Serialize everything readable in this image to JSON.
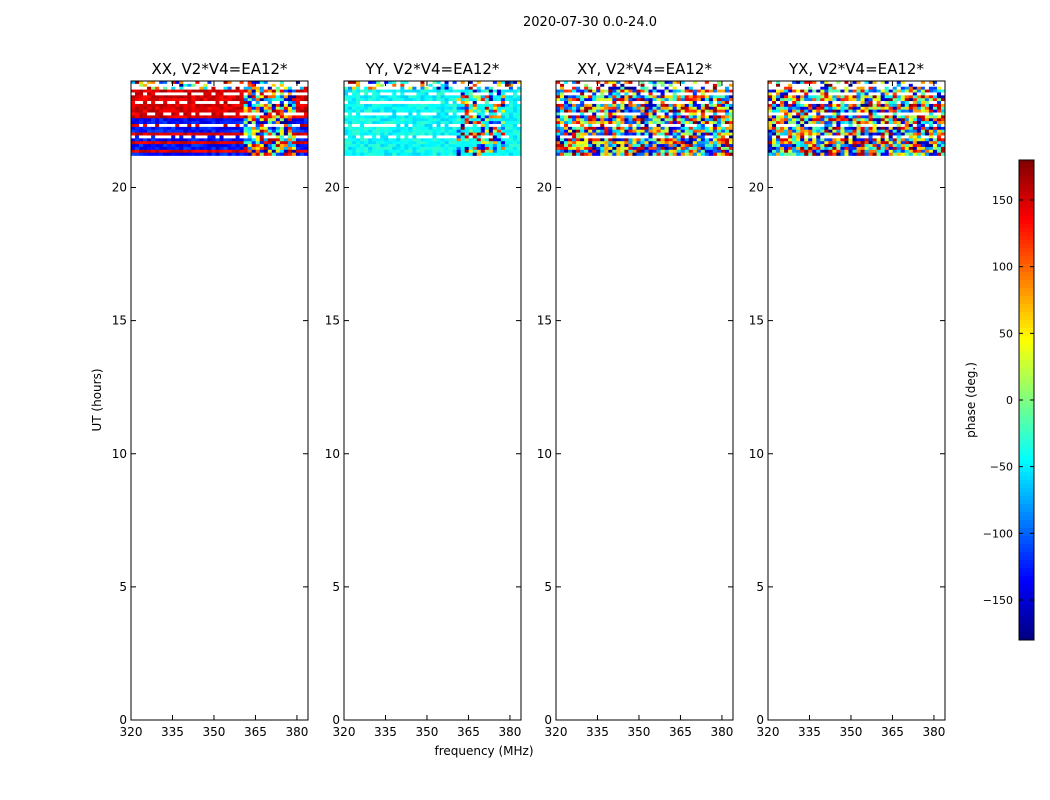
{
  "figure_title": "2020-07-30 0.0-24.0",
  "chart_data": {
    "type": "heatmap",
    "suptitle": "2020-07-30 0.0-24.0",
    "shared_xlabel": "frequency (MHz)",
    "shared_ylabel": "UT (hours)",
    "xlim": [
      320,
      384
    ],
    "ylim": [
      0,
      24
    ],
    "x_ticks": [
      320,
      335,
      350,
      365,
      380
    ],
    "y_ticks": [
      0,
      5,
      10,
      15,
      20
    ],
    "data_time_range_hours": [
      21.2,
      24.0
    ],
    "panels": [
      {
        "title": "XX, V2*V4=EA12*",
        "pol": "XX",
        "pattern": "xx"
      },
      {
        "title": "YY, V2*V4=EA12*",
        "pol": "YY",
        "pattern": "yy"
      },
      {
        "title": "XY, V2*V4=EA12*",
        "pol": "XY",
        "pattern": "noise"
      },
      {
        "title": "YX, V2*V4=EA12*",
        "pol": "YX",
        "pattern": "noise"
      }
    ],
    "colorbar": {
      "label": "phase (deg.)",
      "range": [
        -180,
        180
      ],
      "ticks": [
        -150,
        -100,
        -50,
        0,
        50,
        100,
        150
      ],
      "colormap": "jet"
    }
  }
}
